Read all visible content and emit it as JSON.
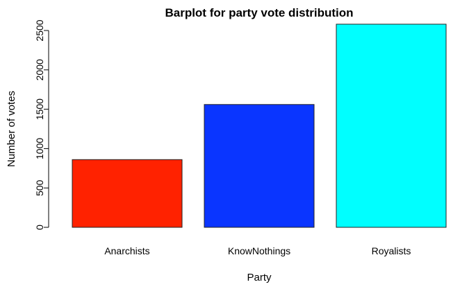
{
  "chart_data": {
    "type": "bar",
    "title": "Barplot for party vote distribution",
    "xlabel": "Party",
    "ylabel": "Number of votes",
    "categories": [
      "Anarchists",
      "KnowNothings",
      "Royalists"
    ],
    "values": [
      860,
      1560,
      2580
    ],
    "colors": [
      "#ff2200",
      "#0a35ff",
      "#00ffff"
    ],
    "ylim": [
      0,
      2500
    ],
    "yticks": [
      0,
      500,
      1000,
      1500,
      2000,
      2500
    ],
    "grid": false,
    "legend": "none"
  }
}
